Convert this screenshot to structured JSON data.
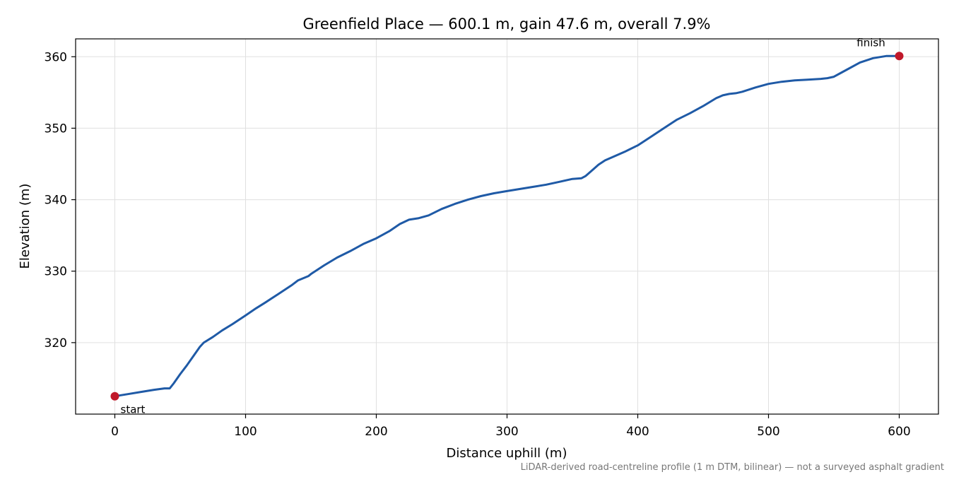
{
  "chart_data": {
    "type": "line",
    "title": "Greenfield Place — 600.1 m, gain 47.6 m, overall 7.9%",
    "xlabel": "Distance uphill (m)",
    "ylabel": "Elevation (m)",
    "xlim": [
      -30,
      630
    ],
    "ylim": [
      310,
      362.5
    ],
    "xticks": [
      0,
      100,
      200,
      300,
      400,
      500,
      600
    ],
    "yticks": [
      320,
      330,
      340,
      350,
      360
    ],
    "xtick_labels": [
      "0",
      "100",
      "200",
      "300",
      "400",
      "500",
      "600"
    ],
    "ytick_labels": [
      "320",
      "330",
      "340",
      "350",
      "360"
    ],
    "grid": true,
    "line_color": "#1f5aa6",
    "marker_color": "#c0182a",
    "series": [
      {
        "x": [
          0,
          10,
          20,
          30,
          38,
          42,
          45,
          50,
          55,
          60,
          65,
          68,
          75,
          82,
          90,
          100,
          108,
          115,
          125,
          135,
          140,
          148,
          150,
          160,
          170,
          180,
          190,
          200,
          210,
          218,
          225,
          232,
          240,
          250,
          260,
          270,
          280,
          290,
          300,
          310,
          320,
          330,
          340,
          350,
          357,
          360,
          365,
          370,
          375,
          380,
          390,
          400,
          410,
          420,
          430,
          440,
          450,
          460,
          465,
          470,
          475,
          480,
          490,
          500,
          510,
          520,
          530,
          540,
          545,
          550,
          555,
          560,
          570,
          580,
          590,
          600
        ],
        "y": [
          312.5,
          312.8,
          313.1,
          313.4,
          313.6,
          313.6,
          314.3,
          315.6,
          316.8,
          318.1,
          319.4,
          320.0,
          320.8,
          321.7,
          322.6,
          323.8,
          324.8,
          325.6,
          326.8,
          328.0,
          328.7,
          329.3,
          329.6,
          330.8,
          331.9,
          332.8,
          333.8,
          334.6,
          335.6,
          336.6,
          337.2,
          337.4,
          337.8,
          338.7,
          339.4,
          340.0,
          340.5,
          340.9,
          341.2,
          341.5,
          341.8,
          342.1,
          342.5,
          342.9,
          343.0,
          343.3,
          344.1,
          344.9,
          345.5,
          345.9,
          346.7,
          347.6,
          348.8,
          350.0,
          351.2,
          352.1,
          353.1,
          354.2,
          354.6,
          354.8,
          354.9,
          355.1,
          355.7,
          356.2,
          356.5,
          356.7,
          356.8,
          356.9,
          357.0,
          357.2,
          357.7,
          358.2,
          359.2,
          359.8,
          360.1,
          360.1
        ]
      }
    ],
    "annotations": [
      {
        "text": "start",
        "x": 0,
        "y": 312.5
      },
      {
        "text": "finish",
        "x": 600,
        "y": 360.1
      }
    ],
    "footnote": "LiDAR-derived road-centreline profile (1 m DTM, bilinear) — not a surveyed asphalt gradient"
  }
}
